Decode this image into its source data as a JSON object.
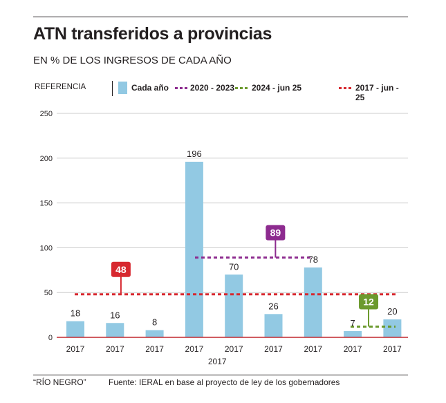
{
  "header": {
    "title": "ATN transferidos a provincias",
    "subtitle": "EN % DE LOS INGRESOS DE CADA AÑO"
  },
  "legend": {
    "reference_label": "REFERENCIA",
    "items": [
      {
        "label": "Cada año",
        "type": "bar",
        "color": "#92c9e3"
      },
      {
        "label": "2020 - 2023",
        "type": "dotted-line",
        "color": "#8d2b8f"
      },
      {
        "label": "2024 - jun 25",
        "type": "dotted-line",
        "color": "#6c9a2e"
      },
      {
        "label": "2017 - jun - 25",
        "type": "dotted-line",
        "color": "#d7282f"
      }
    ]
  },
  "chart_data": {
    "type": "bar",
    "title": "ATN transferidos a provincias",
    "subtitle": "EN % DE LOS INGRESOS DE CADA AÑO",
    "xlabel": "2017",
    "ylabel": "",
    "ylim": [
      0,
      250
    ],
    "yticks": [
      0,
      50,
      100,
      150,
      200,
      250
    ],
    "grid": true,
    "legend_position": "top",
    "categories": [
      "2017",
      "2017",
      "2017",
      "2017",
      "2017",
      "2017",
      "2017",
      "2017",
      "2017"
    ],
    "series": [
      {
        "name": "Cada año",
        "color": "#92c9e3",
        "values": [
          18,
          16,
          8,
          196,
          70,
          26,
          78,
          7,
          20
        ]
      }
    ],
    "reference_lines": [
      {
        "name": "2017 - jun - 25",
        "value": 48,
        "color": "#d7282f",
        "from_index": 0,
        "to_index": 8
      },
      {
        "name": "2020 - 2023",
        "value": 89,
        "color": "#8d2b8f",
        "from_index": 3,
        "to_index": 6
      },
      {
        "name": "2024 - jun 25",
        "value": 12,
        "color": "#6c9a2e",
        "from_index": 7,
        "to_index": 8
      }
    ],
    "colors": {
      "bar": "#92c9e3",
      "axis": "#c1272d",
      "grid": "#cccccc",
      "text": "#231f20"
    }
  },
  "footer": {
    "credit": "“RÍO NEGRO”",
    "source": "Fuente: IERAL en  base al proyecto de ley de los gobernadores"
  }
}
